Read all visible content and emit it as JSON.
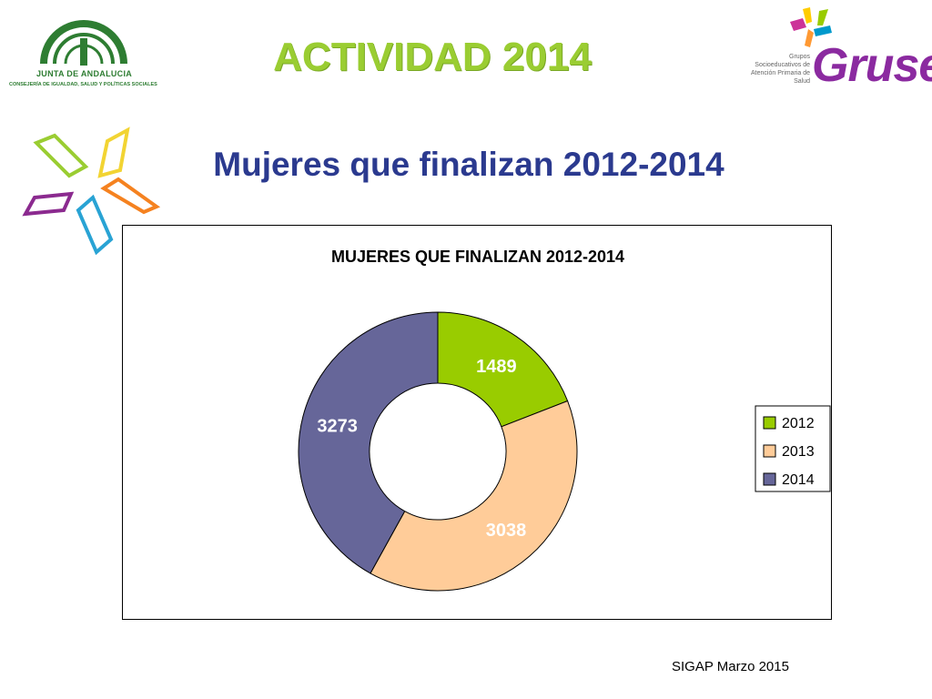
{
  "header": {
    "title": "ACTIVIDAD 2014",
    "logo_left_name": "JUNTA DE ANDALUCIA",
    "logo_left_sub": "CONSEJERÍA DE IGUALDAD, SALUD Y POLÍTICAS SOCIALES",
    "logo_right_caption": "Grupos Socioeducativos de Atención Primaria de Salud",
    "logo_right_word": "Gruse"
  },
  "subtitle": "Mujeres que finalizan 2012-2014",
  "footer": "SIGAP Marzo 2015",
  "colors": {
    "title": "#9acd32",
    "subtitle": "#2b3a8f",
    "slice_2012": "#99cc00",
    "slice_2013": "#ffcc99",
    "slice_2014": "#666699"
  },
  "chart_data": {
    "type": "pie",
    "variant": "doughnut",
    "title": "MUJERES QUE FINALIZAN 2012-2014",
    "categories": [
      "2012",
      "2013",
      "2014"
    ],
    "values": [
      1489,
      3038,
      3273
    ],
    "colors": [
      "#99cc00",
      "#ffcc99",
      "#666699"
    ],
    "data_labels": [
      "1489",
      "3038",
      "3273"
    ],
    "legend": {
      "position": "right",
      "entries": [
        "2012",
        "2013",
        "2014"
      ]
    }
  }
}
